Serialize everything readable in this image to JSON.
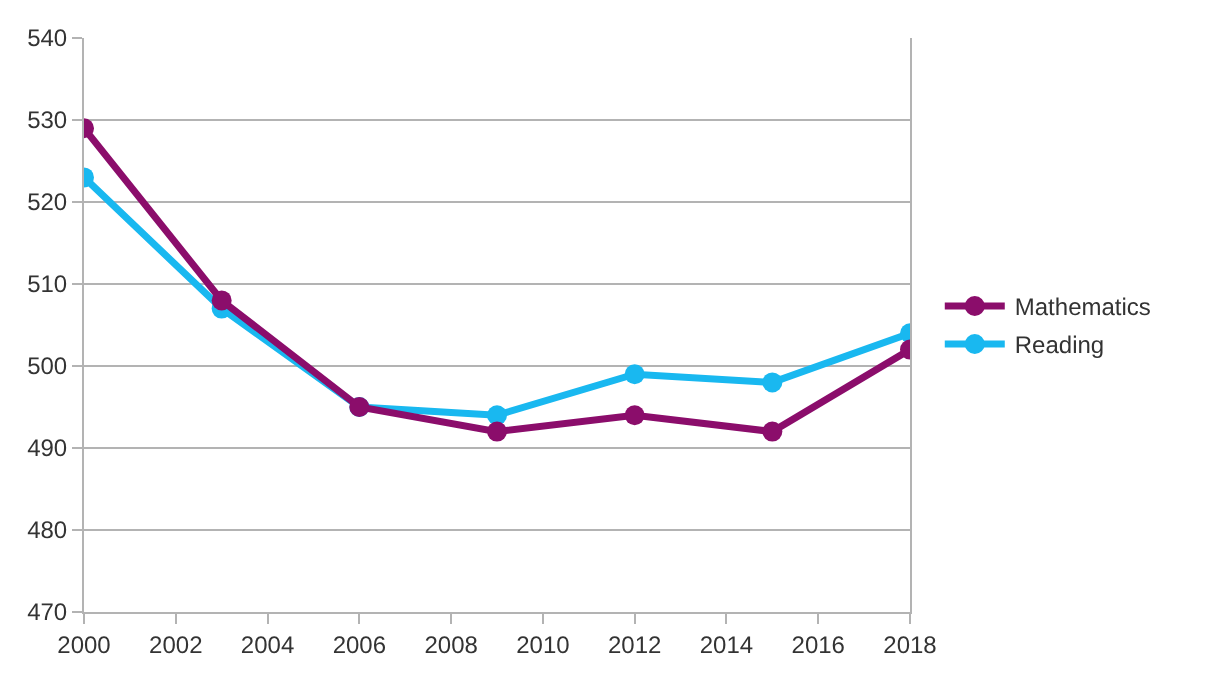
{
  "chart_data": {
    "type": "line",
    "x": [
      2000,
      2003,
      2006,
      2009,
      2012,
      2015,
      2018
    ],
    "series": [
      {
        "name": "Mathematics",
        "color": "#8b0d6b",
        "values": [
          529,
          508,
          495,
          492,
          494,
          492,
          502
        ]
      },
      {
        "name": "Reading",
        "color": "#19b8f0",
        "values": [
          523,
          507,
          495,
          494,
          499,
          498,
          504
        ]
      }
    ],
    "xlim": [
      2000,
      2018
    ],
    "xticks": [
      2000,
      2002,
      2004,
      2006,
      2008,
      2010,
      2012,
      2014,
      2016,
      2018
    ],
    "ylim": [
      470,
      540
    ],
    "yticks": [
      470,
      480,
      490,
      500,
      510,
      520,
      530,
      540
    ],
    "grid": "y",
    "legend": "right",
    "marker": "circle",
    "line_style": "solid"
  }
}
